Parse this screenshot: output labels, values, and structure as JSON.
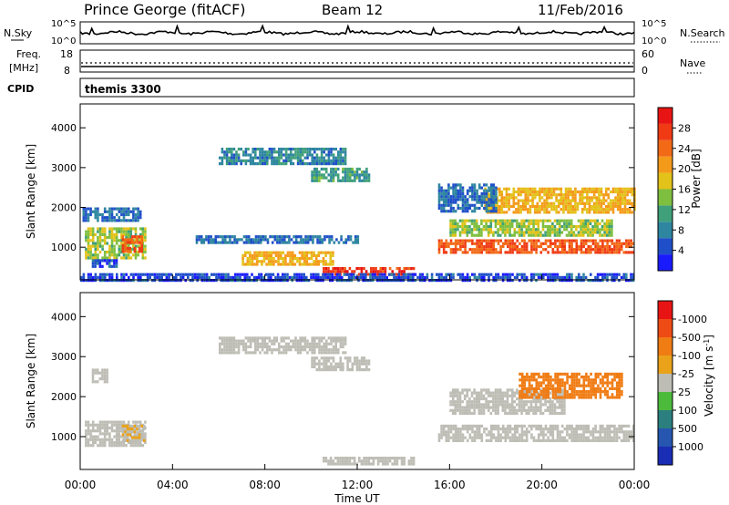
{
  "header": {
    "station": "Prince George (fitACF)",
    "beam": "Beam 12",
    "date": "11/Feb/2016"
  },
  "noise_panel": {
    "left_label": "N.Sky",
    "right_label": "N.Search",
    "y_ticks_left": [
      "10^5",
      "10^0"
    ],
    "y_ticks_right": [
      "10^5",
      "10^0"
    ]
  },
  "freq_panel": {
    "left_label_1": "Freq.",
    "left_label_2": "[MHz]",
    "left_ticks": [
      "18",
      "8"
    ],
    "right_label": "Nave",
    "right_ticks": [
      "60",
      "0"
    ]
  },
  "cpid": {
    "label": "CPID",
    "value": "themis 3300"
  },
  "power_panel": {
    "ylabel": "Slant Range [km]",
    "y_ticks": [
      "1000",
      "2000",
      "3000",
      "4000"
    ],
    "colorbar_label": "Power [dB]",
    "colorbar_ticks": [
      "4",
      "8",
      "12",
      "16",
      "20",
      "24",
      "28"
    ],
    "colors": [
      "#1a1aff",
      "#1f4fc8",
      "#2e86a0",
      "#3fa07a",
      "#7fbf3f",
      "#e3c21a",
      "#f49a1a",
      "#f26a16",
      "#ef3a14",
      "#e81414"
    ]
  },
  "velocity_panel": {
    "ylabel": "Slant Range [km]",
    "y_ticks": [
      "1000",
      "2000",
      "3000",
      "4000"
    ],
    "colorbar_label": "Velocity [m s",
    "colorbar_label_sup": "-1",
    "colorbar_ticks": [
      "1000",
      "500",
      "100",
      "25",
      "-25",
      "-100",
      "-500",
      "-1000"
    ],
    "colors": [
      "#1a2db5",
      "#2656b0",
      "#2b7f7f",
      "#4cbb3c",
      "#bdbdb5",
      "#bdbdb5",
      "#e9a21a",
      "#f07c14",
      "#ee4c14",
      "#e81414"
    ]
  },
  "x_axis": {
    "label": "Time UT",
    "ticks": [
      "00:00",
      "04:00",
      "08:00",
      "12:00",
      "16:00",
      "20:00",
      "00:00"
    ]
  },
  "chart_data": {
    "type": "heatmap",
    "title": "Prince George (fitACF)  Beam 12  11/Feb/2016",
    "xlabel": "Time UT",
    "ylabel": "Slant Range [km]",
    "xlim_hours": [
      0,
      24
    ],
    "ylim_km": [
      180,
      4600
    ],
    "panels": [
      {
        "name": "Power",
        "units": "dB",
        "clim": [
          0,
          30
        ],
        "blobs": [
          {
            "t": [
              0.2,
              2.8
            ],
            "r": [
              750,
              1500
            ],
            "value": 14
          },
          {
            "t": [
              1.8,
              2.7
            ],
            "r": [
              900,
              1300
            ],
            "value": 24
          },
          {
            "t": [
              0.1,
              2.6
            ],
            "r": [
              1700,
              2000
            ],
            "value": 6
          },
          {
            "t": [
              0.5,
              1.6
            ],
            "r": [
              500,
              700
            ],
            "value": 4
          },
          {
            "t": [
              5.0,
              12.0
            ],
            "r": [
              1100,
              1300
            ],
            "value": 6
          },
          {
            "t": [
              7.0,
              11.0
            ],
            "r": [
              600,
              900
            ],
            "value": 18
          },
          {
            "t": [
              10.5,
              14.5
            ],
            "r": [
              300,
              500
            ],
            "value": 26
          },
          {
            "t": [
              6.0,
              11.5
            ],
            "r": [
              3100,
              3500
            ],
            "value": 8
          },
          {
            "t": [
              10.0,
              12.5
            ],
            "r": [
              2700,
              3000
            ],
            "value": 10
          },
          {
            "t": [
              15.5,
              24.0
            ],
            "r": [
              900,
              1200
            ],
            "value": 24
          },
          {
            "t": [
              16.0,
              23.0
            ],
            "r": [
              1300,
              1700
            ],
            "value": 14
          },
          {
            "t": [
              17.5,
              24.0
            ],
            "r": [
              1900,
              2500
            ],
            "value": 18
          },
          {
            "t": [
              15.5,
              18.0
            ],
            "r": [
              1900,
              2600
            ],
            "value": 6
          },
          {
            "t": [
              0.0,
              24.0
            ],
            "r": [
              180,
              350
            ],
            "value": 4
          }
        ]
      },
      {
        "name": "Velocity",
        "units": "m s-1",
        "clim": [
          -1000,
          1000
        ],
        "blobs": [
          {
            "t": [
              0.2,
              2.8
            ],
            "r": [
              800,
              1400
            ],
            "value": 0
          },
          {
            "t": [
              1.8,
              2.8
            ],
            "r": [
              900,
              1300
            ],
            "value": -200
          },
          {
            "t": [
              6.0,
              11.5
            ],
            "r": [
              3100,
              3500
            ],
            "value": 0
          },
          {
            "t": [
              10.0,
              12.5
            ],
            "r": [
              2700,
              3000
            ],
            "value": 0
          },
          {
            "t": [
              10.5,
              14.5
            ],
            "r": [
              300,
              500
            ],
            "value": -60
          },
          {
            "t": [
              15.5,
              24.0
            ],
            "r": [
              900,
              1300
            ],
            "value": 0
          },
          {
            "t": [
              16.0,
              21.0
            ],
            "r": [
              1600,
              2200
            ],
            "value": -150
          },
          {
            "t": [
              19.0,
              23.5
            ],
            "r": [
              2000,
              2600
            ],
            "value": -450
          },
          {
            "t": [
              0.5,
              1.2
            ],
            "r": [
              2400,
              2700
            ],
            "value": 100
          }
        ]
      }
    ]
  }
}
